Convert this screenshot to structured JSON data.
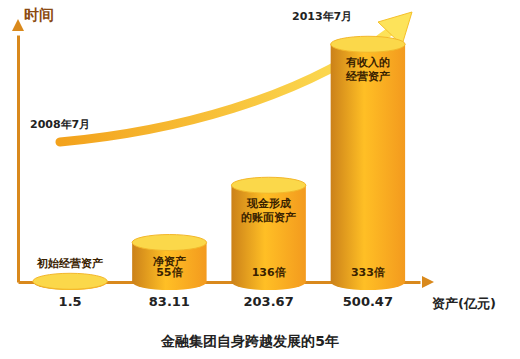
{
  "chart_data": {
    "type": "bar",
    "title": "金融集团自身跨越发展的5年",
    "x_label": "资产(亿元)",
    "y_label": "时间",
    "categories": [
      "初始经营资产",
      "净资产",
      "现金形成的账面资产",
      "有收入的经营资产"
    ],
    "values": [
      1.5,
      83.11,
      203.67,
      500.47
    ],
    "multiples": [
      null,
      55,
      136,
      333
    ],
    "multiple_labels": [
      null,
      "55倍",
      "136倍",
      "333倍"
    ],
    "annotations": [
      "2008年7月",
      "2013年7月"
    ],
    "ylim": [
      0,
      520
    ],
    "yticks": [],
    "data_labels": true,
    "tick_labels": false,
    "color": "#f39a1e"
  }
}
